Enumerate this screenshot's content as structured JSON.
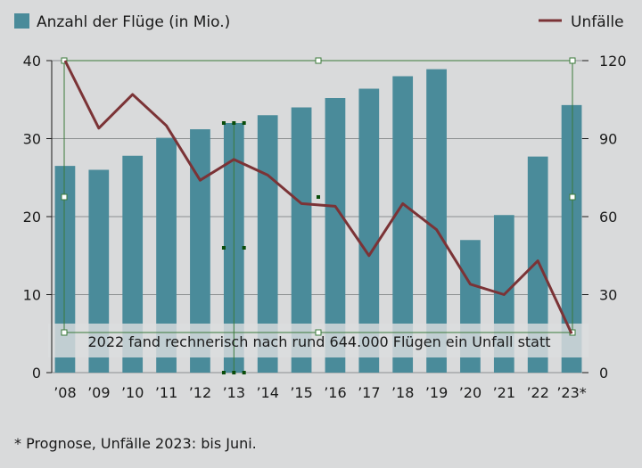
{
  "chart_data": {
    "type": "bar+line",
    "categories": [
      "’08",
      "’09",
      "’10",
      "’11",
      "’12",
      "’13",
      "’14",
      "’15",
      "’16",
      "’17",
      "’18",
      "’19",
      "’20",
      "’21",
      "’22",
      "’23*"
    ],
    "series": [
      {
        "name": "Anzahl der Flüge (in Mio.)",
        "type": "bar",
        "axis": "left",
        "color": "#4a8b9a",
        "values": [
          26.5,
          26,
          27.8,
          30.1,
          31.2,
          32,
          33,
          34,
          35.2,
          36.4,
          38,
          38.9,
          17,
          20.2,
          27.7,
          34.3
        ]
      },
      {
        "name": "Unfälle",
        "type": "line",
        "axis": "right",
        "color": "#7b3336",
        "values": [
          120,
          94,
          107,
          95,
          74,
          82,
          76,
          65,
          64,
          45,
          65,
          55,
          34,
          30,
          43,
          15
        ]
      }
    ],
    "y_left": {
      "ylim": [
        0,
        40
      ],
      "ticks": [
        "0",
        "10",
        "20",
        "30",
        "40"
      ]
    },
    "y_right": {
      "ylim": [
        0,
        120
      ],
      "ticks": [
        "0",
        "30",
        "60",
        "90",
        "120"
      ]
    },
    "grid": true,
    "legend": [
      "top-left",
      "top-right"
    ],
    "annotation": "2022 fand rechnerisch nach rund 644.000 Flügen ein Unfall statt"
  },
  "footnote": "* Prognose, Unfälle 2023: bis Juni."
}
